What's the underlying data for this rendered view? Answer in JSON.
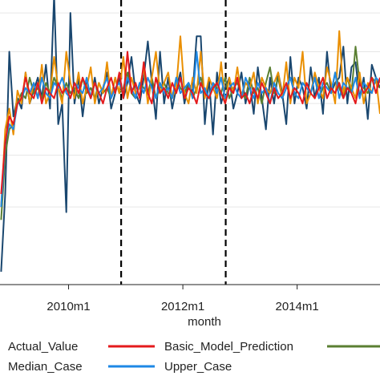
{
  "chart_data": {
    "type": "line",
    "xlabel": "month",
    "ylabel": "",
    "xlim": [
      2008.8,
      2015.45
    ],
    "ylim": [
      0,
      1.1
    ],
    "x_ticks": [
      {
        "value": 2010,
        "label": "2010m1"
      },
      {
        "value": 2012,
        "label": "2012m1"
      },
      {
        "value": 2014,
        "label": "2014m1"
      }
    ],
    "y_gridlines": [
      0.3,
      0.5,
      0.7,
      0.9,
      1.05
    ],
    "vlines": [
      2010.92,
      2012.75
    ],
    "grid": true,
    "series": [
      {
        "name": "Actual_Value",
        "color": "#1a476f",
        "values": [
          0.05,
          0.35,
          0.9,
          0.65,
          0.72,
          0.68,
          0.82,
          0.7,
          0.75,
          0.8,
          0.72,
          0.85,
          0.68,
          1.12,
          0.62,
          0.7,
          0.28,
          1.05,
          0.7,
          0.8,
          0.65,
          0.78,
          0.72,
          0.8,
          0.7,
          0.76,
          0.82,
          0.68,
          0.74,
          0.8,
          0.72,
          0.78,
          0.88,
          0.74,
          0.7,
          0.8,
          0.94,
          0.78,
          0.64,
          0.9,
          0.7,
          0.8,
          0.68,
          0.76,
          0.82,
          0.7,
          0.78,
          0.74,
          0.96,
          0.96,
          0.62,
          0.8,
          0.58,
          0.82,
          0.7,
          0.76,
          0.8,
          0.68,
          0.74,
          0.82,
          0.7,
          0.78,
          0.66,
          0.84,
          0.72,
          0.6,
          0.8,
          0.7,
          0.82,
          0.74,
          0.62,
          0.88,
          0.7,
          0.8,
          0.76,
          0.68,
          0.84,
          0.72,
          0.8,
          0.66,
          0.9,
          0.74,
          0.78,
          0.8,
          0.92,
          0.7,
          0.84,
          0.86,
          0.72,
          0.8,
          0.64,
          0.85,
          0.8,
          0.76
        ]
      },
      {
        "name": "Basic_Model_Prediction",
        "color": "#e41a1c",
        "values": [
          0.35,
          0.55,
          0.65,
          0.62,
          0.7,
          0.72,
          0.8,
          0.74,
          0.72,
          0.78,
          0.7,
          0.76,
          0.74,
          0.72,
          0.78,
          0.74,
          0.76,
          0.72,
          0.78,
          0.74,
          0.8,
          0.76,
          0.72,
          0.78,
          0.74,
          0.7,
          0.76,
          0.8,
          0.74,
          0.82,
          0.72,
          0.9,
          0.74,
          0.78,
          0.72,
          0.86,
          0.74,
          0.7,
          0.8,
          0.74,
          0.76,
          0.72,
          0.78,
          0.74,
          0.8,
          0.72,
          0.76,
          0.74,
          0.7,
          0.78,
          0.74,
          0.72,
          0.76,
          0.78,
          0.74,
          0.7,
          0.76,
          0.74,
          0.8,
          0.72,
          0.74,
          0.7,
          0.76,
          0.72,
          0.78,
          0.74,
          0.7,
          0.76,
          0.72,
          0.74,
          0.78,
          0.72,
          0.76,
          0.74,
          0.7,
          0.78,
          0.74,
          0.72,
          0.76,
          0.8,
          0.72,
          0.76,
          0.74,
          0.78,
          0.72,
          0.76,
          0.74,
          0.7,
          0.78,
          0.74,
          0.76,
          0.8,
          0.74,
          0.8
        ]
      },
      {
        "name": "Median_Case",
        "color": "#ea8f00",
        "values": [
          0.3,
          0.6,
          0.68,
          0.58,
          0.75,
          0.7,
          0.82,
          0.7,
          0.78,
          0.72,
          0.85,
          0.7,
          0.74,
          0.88,
          0.76,
          0.7,
          0.9,
          0.78,
          0.72,
          0.82,
          0.7,
          0.76,
          0.84,
          0.7,
          0.78,
          0.74,
          0.86,
          0.72,
          0.8,
          0.74,
          0.88,
          0.72,
          0.8,
          0.74,
          0.76,
          0.84,
          0.7,
          0.8,
          0.9,
          0.74,
          0.78,
          0.82,
          0.72,
          0.76,
          0.96,
          0.74,
          0.7,
          0.8,
          0.74,
          0.9,
          0.72,
          0.8,
          0.76,
          0.72,
          0.86,
          0.7,
          0.8,
          0.74,
          0.84,
          0.72,
          0.78,
          0.76,
          0.82,
          0.7,
          0.8,
          0.76,
          0.74,
          0.78,
          0.82,
          0.72,
          0.86,
          0.7,
          0.8,
          0.76,
          0.9,
          0.7,
          0.74,
          0.82,
          0.76,
          0.72,
          0.84,
          0.78,
          0.7,
          0.98,
          0.74,
          0.8,
          0.76,
          0.72,
          0.82,
          0.7,
          0.78,
          0.74,
          0.8,
          0.66
        ]
      },
      {
        "name": "Upper_Case",
        "color": "#1e88e5",
        "values": [
          0.3,
          0.55,
          0.62,
          0.6,
          0.7,
          0.72,
          0.76,
          0.74,
          0.78,
          0.72,
          0.8,
          0.74,
          0.72,
          0.78,
          0.76,
          0.8,
          0.74,
          0.72,
          0.78,
          0.76,
          0.74,
          0.8,
          0.72,
          0.78,
          0.74,
          0.76,
          0.8,
          0.72,
          0.76,
          0.78,
          0.74,
          0.8,
          0.76,
          0.72,
          0.78,
          0.74,
          0.8,
          0.76,
          0.72,
          0.78,
          0.74,
          0.76,
          0.72,
          0.8,
          0.74,
          0.76,
          0.78,
          0.72,
          0.9,
          0.74,
          0.76,
          0.72,
          0.78,
          0.74,
          0.8,
          0.72,
          0.76,
          0.78,
          0.74,
          0.72,
          0.8,
          0.76,
          0.72,
          0.78,
          0.74,
          0.76,
          0.7,
          0.78,
          0.74,
          0.72,
          0.76,
          0.8,
          0.74,
          0.72,
          0.78,
          0.76,
          0.74,
          0.8,
          0.72,
          0.78,
          0.76,
          0.74,
          0.82,
          0.72,
          0.78,
          0.76,
          0.74,
          0.8,
          0.72,
          0.78,
          0.76,
          0.74,
          0.8,
          0.78
        ]
      },
      {
        "name": "",
        "color": "#5a7f32",
        "values": [
          0.25,
          0.5,
          0.6,
          0.62,
          0.7,
          0.74,
          0.72,
          0.8,
          0.74,
          0.76,
          0.72,
          0.78,
          0.74,
          0.8,
          0.76,
          0.72,
          0.78,
          0.74,
          0.76,
          0.72,
          0.8,
          0.74,
          0.76,
          0.72,
          0.78,
          0.74,
          0.76,
          0.72,
          0.8,
          0.74,
          0.76,
          0.82,
          0.74,
          0.72,
          0.78,
          0.76,
          0.74,
          0.8,
          0.72,
          0.76,
          0.78,
          0.74,
          0.72,
          0.8,
          0.76,
          0.74,
          0.78,
          0.72,
          0.76,
          0.8,
          0.74,
          0.72,
          0.78,
          0.76,
          0.74,
          0.8,
          0.72,
          0.76,
          0.78,
          0.74,
          0.72,
          0.8,
          0.74,
          0.76,
          0.7,
          0.78,
          0.84,
          0.74,
          0.8,
          0.72,
          0.76,
          0.8,
          0.74,
          0.72,
          0.78,
          0.76,
          0.74,
          0.8,
          0.72,
          0.76,
          0.78,
          0.74,
          0.82,
          0.76,
          0.72,
          0.8,
          0.74,
          0.92,
          0.78,
          0.76,
          0.74,
          0.8,
          0.78,
          0.76
        ]
      }
    ],
    "legend": {
      "placement": "bottom",
      "entries": [
        {
          "label": "Actual_Value",
          "color": "#1a476f"
        },
        {
          "label": "Basic_Model_Prediction",
          "color": "#e41a1c"
        },
        {
          "label": "",
          "color": "#5a7f32"
        },
        {
          "label": "Median_Case",
          "color": "#ea8f00"
        },
        {
          "label": "Upper_Case",
          "color": "#1e88e5"
        }
      ]
    }
  }
}
